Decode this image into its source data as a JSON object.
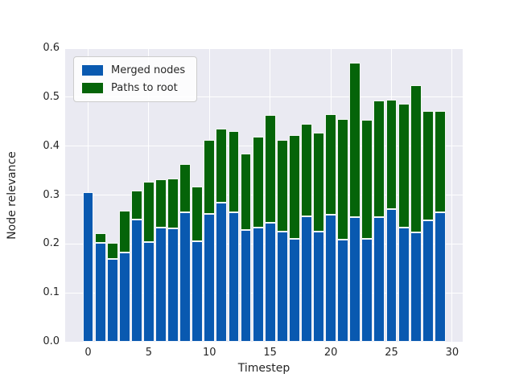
{
  "chart_data": {
    "type": "bar",
    "stacked": true,
    "title": "",
    "xlabel": "Timestep",
    "ylabel": "Node relevance",
    "ylim": [
      0.0,
      0.6
    ],
    "yticks": [
      0.0,
      0.1,
      0.2,
      0.3,
      0.4,
      0.5,
      0.6
    ],
    "ytick_labels": [
      "0.0",
      "0.1",
      "0.2",
      "0.3",
      "0.4",
      "0.5",
      "0.6"
    ],
    "xticks": [
      0,
      5,
      10,
      15,
      20,
      25,
      30
    ],
    "xtick_labels": [
      "0",
      "5",
      "10",
      "15",
      "20",
      "25",
      "30"
    ],
    "grid": true,
    "legend_position": "upper left",
    "x": [
      0,
      1,
      2,
      3,
      4,
      5,
      6,
      7,
      8,
      9,
      10,
      11,
      12,
      13,
      14,
      15,
      16,
      17,
      18,
      19,
      20,
      21,
      22,
      23,
      24,
      25,
      26,
      27,
      28,
      29
    ],
    "series": [
      {
        "name": "Merged nodes",
        "color": "#0959b0",
        "values": [
          0.305,
          0.202,
          0.169,
          0.182,
          0.25,
          0.204,
          0.234,
          0.232,
          0.265,
          0.205,
          0.261,
          0.284,
          0.264,
          0.228,
          0.234,
          0.244,
          0.225,
          0.211,
          0.257,
          0.226,
          0.26,
          0.208,
          0.254,
          0.211,
          0.254,
          0.272,
          0.234,
          0.223,
          0.248,
          0.264
        ]
      },
      {
        "name": "Paths to root",
        "color": "#056409",
        "values": [
          0.0,
          0.02,
          0.033,
          0.086,
          0.059,
          0.123,
          0.098,
          0.102,
          0.099,
          0.112,
          0.151,
          0.151,
          0.167,
          0.156,
          0.186,
          0.22,
          0.187,
          0.212,
          0.189,
          0.202,
          0.206,
          0.248,
          0.317,
          0.243,
          0.239,
          0.223,
          0.253,
          0.302,
          0.223,
          0.208
        ]
      }
    ],
    "stack_totals": [
      0.305,
      0.222,
      0.202,
      0.268,
      0.309,
      0.327,
      0.332,
      0.334,
      0.364,
      0.317,
      0.412,
      0.435,
      0.431,
      0.384,
      0.42,
      0.464,
      0.412,
      0.423,
      0.446,
      0.428,
      0.466,
      0.456,
      0.571,
      0.454,
      0.493,
      0.495,
      0.487,
      0.525,
      0.471,
      0.472
    ]
  },
  "colors": {
    "figure_background": "#ffffff",
    "axes_background": "#eaeaf2",
    "gridline": "#ffffff",
    "text": "#262626"
  }
}
